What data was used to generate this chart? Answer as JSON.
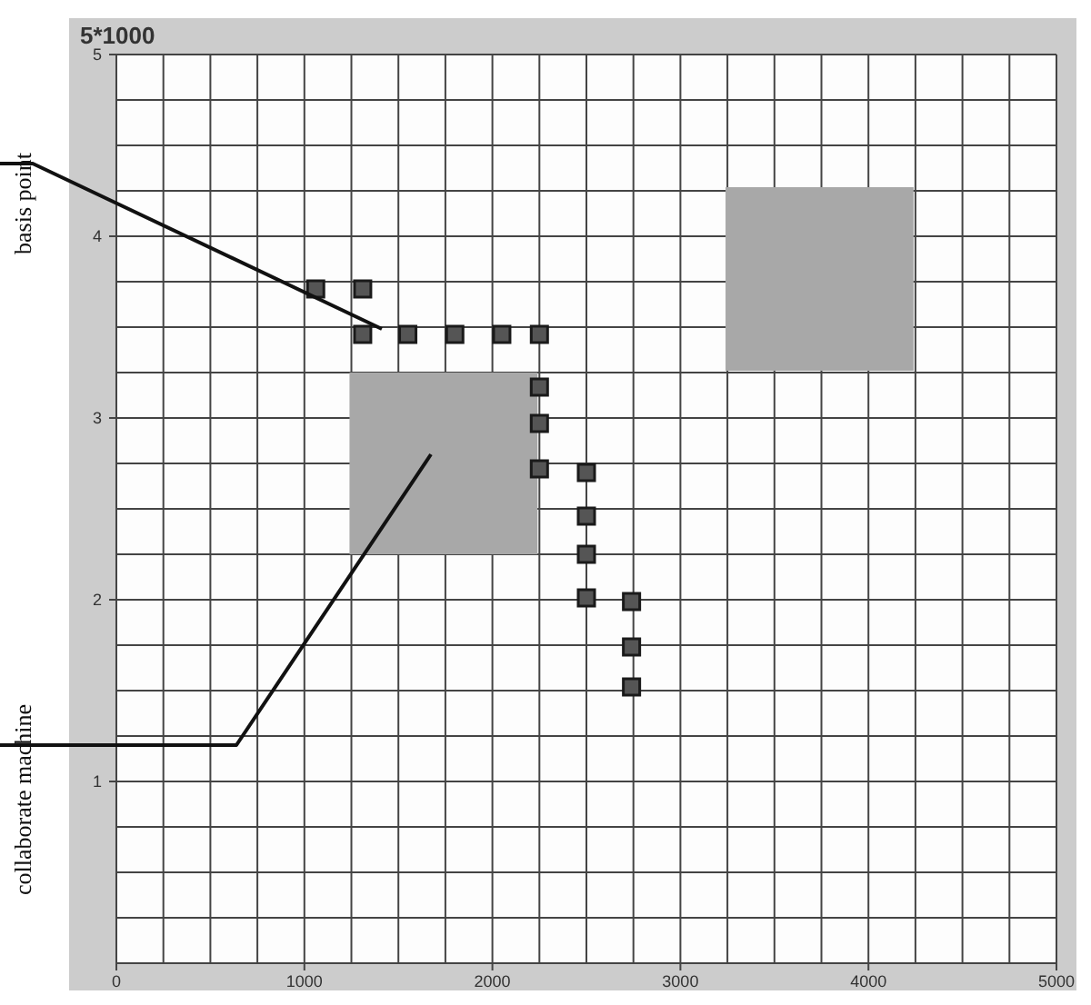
{
  "chart_data": {
    "type": "scatter",
    "ylabel": "5*1000",
    "xlim": [
      0,
      5000
    ],
    "ylim": [
      0,
      5
    ],
    "xticks": [
      0,
      1000,
      2000,
      3000,
      4000,
      5000
    ],
    "yticks": [
      1,
      2,
      3,
      4,
      5
    ],
    "grid": true,
    "marker": "square",
    "series": [
      {
        "color": "#555555",
        "x": [
          1060,
          1310,
          1310,
          1550,
          1800,
          2050,
          2250,
          2250,
          2250,
          2250,
          2500,
          2500,
          2500,
          2500,
          2740,
          2740,
          2740
        ],
        "values": [
          3.71,
          3.71,
          3.46,
          3.46,
          3.46,
          3.46,
          3.46,
          3.17,
          2.97,
          2.72,
          2.7,
          2.46,
          2.25,
          2.01,
          1.99,
          1.74,
          1.52
        ]
      }
    ],
    "annotations": [
      "basis point",
      "collaborate machine"
    ]
  }
}
